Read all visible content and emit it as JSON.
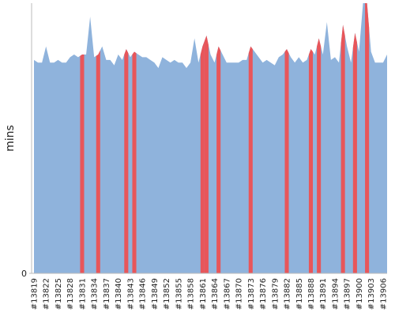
{
  "chart_data": {
    "type": "area",
    "y_label": "mins",
    "categories": [
      "#13819",
      null,
      null,
      "#13822",
      null,
      null,
      "#13825",
      null,
      null,
      "#13828",
      null,
      null,
      "#13831",
      null,
      null,
      "#13834",
      null,
      null,
      "#13837",
      null,
      null,
      "#13840",
      null,
      null,
      "#13843",
      null,
      null,
      "#13846",
      null,
      null,
      "#13849",
      null,
      null,
      "#13852",
      null,
      null,
      "#13855",
      null,
      null,
      "#13858",
      null,
      null,
      "#13861",
      null,
      null,
      "#13864",
      null,
      null,
      "#13867",
      null,
      null,
      "#13870",
      null,
      null,
      "#13873",
      null,
      null,
      "#13876",
      null,
      null,
      "#13879",
      null,
      null,
      "#13882",
      null,
      null,
      "#13885",
      null,
      null,
      "#13888",
      null,
      null,
      "#13891",
      null,
      null,
      "#13894",
      null,
      null,
      "#13897",
      null,
      null,
      "#13900",
      null,
      null,
      "#13903",
      null,
      null,
      "#13906",
      null
    ],
    "values": [
      7.9,
      7.8,
      7.8,
      8.4,
      7.8,
      7.8,
      7.9,
      7.8,
      7.8,
      8.0,
      8.1,
      8.0,
      8.1,
      8.1,
      9.5,
      8.0,
      8.1,
      8.4,
      7.9,
      7.9,
      7.7,
      8.1,
      7.9,
      8.3,
      8.0,
      8.2,
      8.1,
      8.0,
      8.0,
      7.9,
      7.8,
      7.6,
      8.0,
      7.9,
      7.8,
      7.9,
      7.8,
      7.8,
      7.6,
      7.8,
      8.7,
      7.8,
      8.4,
      8.8,
      8.1,
      7.8,
      8.4,
      8.1,
      7.8,
      7.8,
      7.8,
      7.8,
      7.9,
      7.9,
      8.4,
      8.2,
      8.0,
      7.8,
      7.9,
      7.8,
      7.7,
      8.0,
      8.1,
      8.3,
      8.0,
      7.8,
      8.0,
      7.8,
      7.9,
      8.3,
      8.1,
      8.7,
      8.1,
      9.3,
      7.9,
      8.0,
      7.8,
      9.2,
      8.4,
      7.8,
      8.9,
      8.2,
      10,
      10,
      8.2,
      7.8,
      7.8,
      7.8,
      8.1
    ],
    "color": "#8fb3dc",
    "colors": [
      "#8fb3dc",
      "#8fb3dc",
      "#8fb3dc",
      "#8fb3dc",
      "#8fb3dc",
      "#8fb3dc",
      "#8fb3dc",
      "#8fb3dc",
      "#8fb3dc",
      "#8fb3dc",
      "#8fb3dc",
      "#8fb3dc",
      "#e8565a",
      "#8fb3dc",
      "#8fb3dc",
      "#8fb3dc",
      "#e8565a",
      "#8fb3dc",
      "#8fb3dc",
      "#8fb3dc",
      "#8fb3dc",
      "#8fb3dc",
      "#8fb3dc",
      "#e8565a",
      "#8fb3dc",
      "#e8565a",
      "#8fb3dc",
      "#8fb3dc",
      "#8fb3dc",
      "#8fb3dc",
      "#8fb3dc",
      "#8fb3dc",
      "#8fb3dc",
      "#8fb3dc",
      "#8fb3dc",
      "#8fb3dc",
      "#8fb3dc",
      "#8fb3dc",
      "#8fb3dc",
      "#8fb3dc",
      "#8fb3dc",
      "#8fb3dc",
      "#e8565a",
      "#e8565a",
      "#8fb3dc",
      "#8fb3dc",
      "#e8565a",
      "#8fb3dc",
      "#8fb3dc",
      "#8fb3dc",
      "#8fb3dc",
      "#8fb3dc",
      "#8fb3dc",
      "#8fb3dc",
      "#e8565a",
      "#8fb3dc",
      "#8fb3dc",
      "#8fb3dc",
      "#8fb3dc",
      "#8fb3dc",
      "#8fb3dc",
      "#8fb3dc",
      "#8fb3dc",
      "#e8565a",
      "#8fb3dc",
      "#8fb3dc",
      "#8fb3dc",
      "#8fb3dc",
      "#8fb3dc",
      "#e8565a",
      "#8fb3dc",
      "#e8565a",
      "#8fb3dc",
      "#8fb3dc",
      "#8fb3dc",
      "#8fb3dc",
      "#8fb3dc",
      "#e8565a",
      "#8fb3dc",
      "#8fb3dc",
      "#e8565a",
      "#8fb3dc",
      "#8fb3dc",
      "#e8565a",
      "#8fb3dc",
      "#8fb3dc",
      "#8fb3dc",
      "#8fb3dc",
      "#8fb3dc"
    ],
    "ylim": [
      0,
      10
    ],
    "yticks": [
      0
    ]
  }
}
